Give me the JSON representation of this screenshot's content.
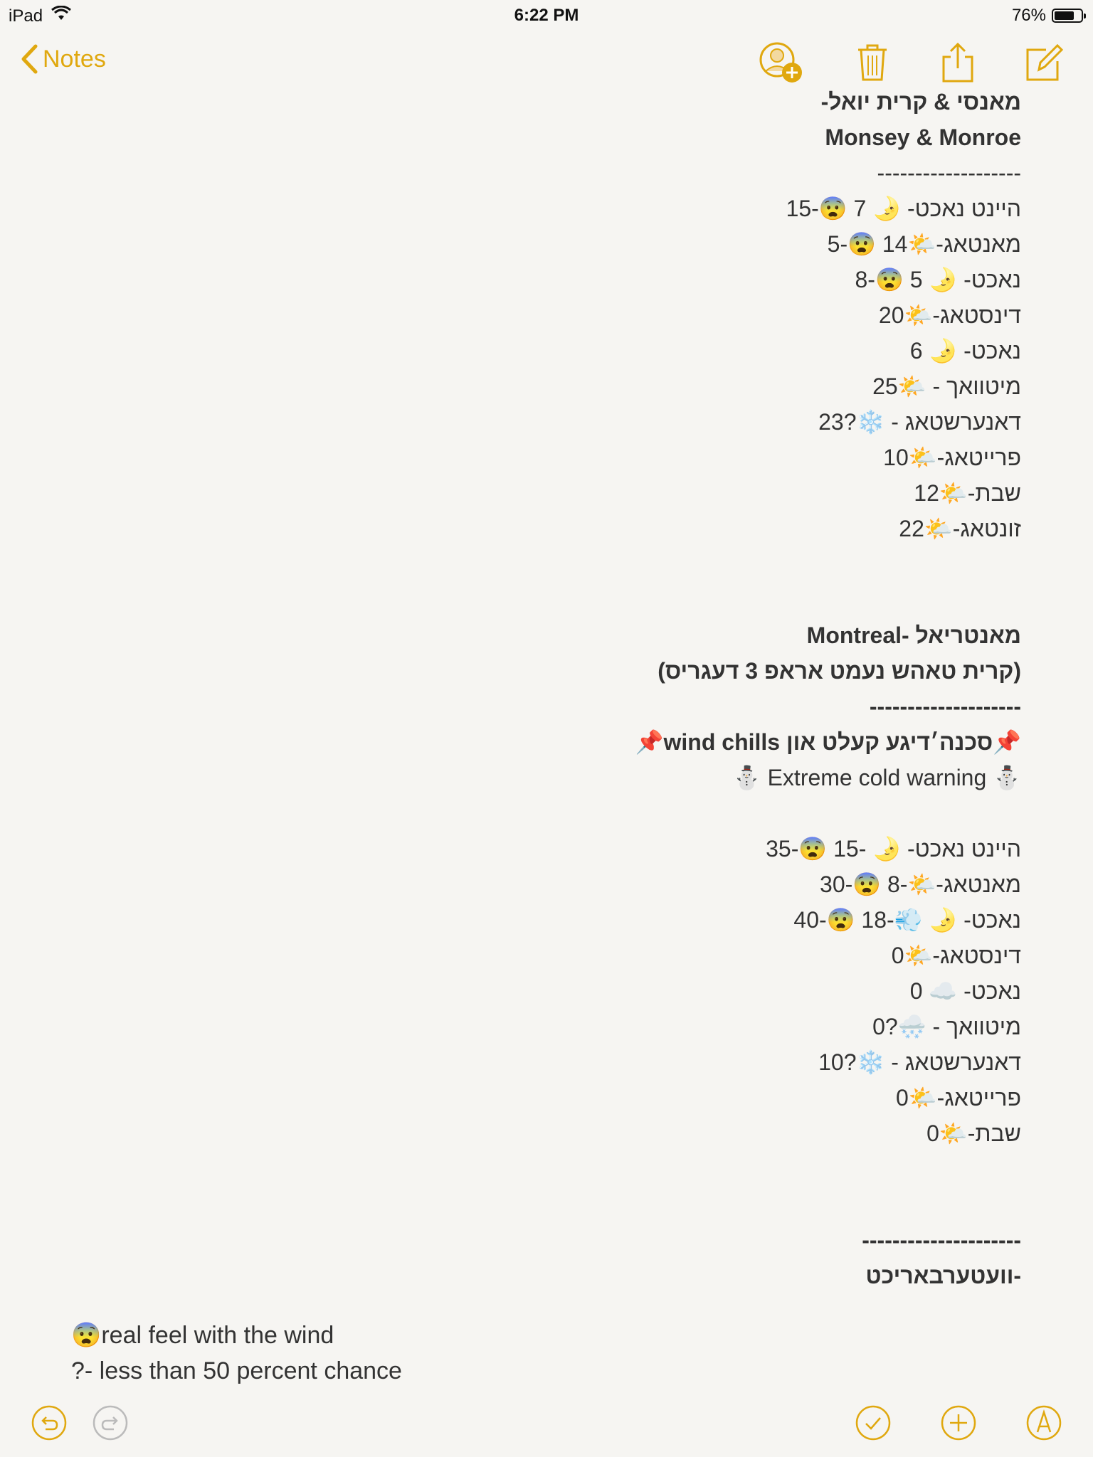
{
  "status": {
    "device": "iPad",
    "time": "6:22 PM",
    "battery": "76%",
    "battery_level": 0.76
  },
  "nav": {
    "back_label": "Notes"
  },
  "colors": {
    "accent": "#e0a80f",
    "text": "#333333",
    "background": "#f6f5f2"
  },
  "icons": [
    "add-person-icon",
    "trash-icon",
    "share-icon",
    "compose-icon",
    "undo-icon",
    "redo-icon",
    "checklist-icon",
    "add-icon",
    "markup-icon"
  ],
  "note": {
    "lines": [
      {
        "text": "מאנסי & קרית יואל-",
        "bold": true
      },
      {
        "text": "Monsey & Monroe",
        "bold": true
      },
      {
        "text": "-------------------",
        "bold": false
      },
      {
        "text": "היינט נאכט- 🌛 7 😨-15",
        "bold": false
      },
      {
        "text": "מאנטאג-🌤️14 😨-5",
        "bold": false
      },
      {
        "text": "נאכט- 🌛 5 😨-8",
        "bold": false
      },
      {
        "text": "דינסטאג-🌤️20",
        "bold": false
      },
      {
        "text": "נאכט- 🌛 6",
        "bold": false
      },
      {
        "text": "מיטוואך - 🌤️25",
        "bold": false
      },
      {
        "text": "דאנערשטאג - ❄️?23",
        "bold": false
      },
      {
        "text": "פרייטאג-🌤️10",
        "bold": false
      },
      {
        "text": "שבת-🌤️12",
        "bold": false
      },
      {
        "text": "זונטאג-🌤️22",
        "bold": false
      },
      {
        "text": "",
        "bold": false
      },
      {
        "text": "",
        "bold": false
      },
      {
        "text": "מאנטריאל -Montreal",
        "bold": true
      },
      {
        "text": "(קרית טאהש נעמט אראפ 3 דעגריס)",
        "bold": true
      },
      {
        "text": "--------------------",
        "bold": true
      },
      {
        "text": "📌סכנה׳דיגע קעלט און wind chills📌",
        "bold": true
      },
      {
        "text": "⛄ Extreme cold warning ⛄",
        "bold": false
      },
      {
        "text": "",
        "bold": false
      },
      {
        "text": "היינט נאכט- 🌛 -15 😨-35",
        "bold": false
      },
      {
        "text": "מאנטאג-🌤️-8 😨-30",
        "bold": false
      },
      {
        "text": "נאכט- 🌛 💨-18 😨-40",
        "bold": false
      },
      {
        "text": "דינסטאג-🌤️0",
        "bold": false
      },
      {
        "text": "נאכט- ☁️ 0",
        "bold": false
      },
      {
        "text": "מיטוואך - 🌨️?0",
        "bold": false
      },
      {
        "text": "דאנערשטאג - ❄️?10",
        "bold": false
      },
      {
        "text": "פרייטאג-🌤️0",
        "bold": false
      },
      {
        "text": "שבת-🌤️0",
        "bold": false
      },
      {
        "text": "",
        "bold": false
      },
      {
        "text": "",
        "bold": false
      },
      {
        "text": "---------------------",
        "bold": true
      },
      {
        "text": "-וועטערבאריכט",
        "bold": true
      }
    ]
  },
  "legend": {
    "line1": "😨real feel with the wind",
    "line2": "?- less than 50 percent chance"
  }
}
